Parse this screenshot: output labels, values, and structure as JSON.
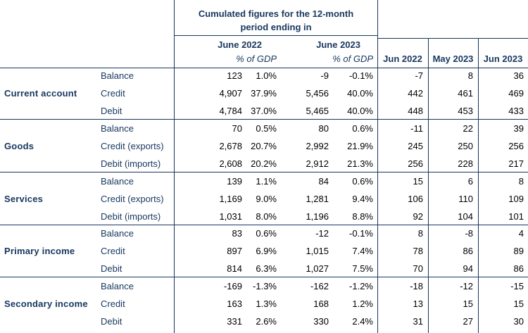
{
  "header": {
    "cumulated_line1": "Cumulated figures for the 12-month",
    "cumulated_line2": "period ending in",
    "june2022": "June 2022",
    "june2023": "June 2023",
    "pct_gdp_1": "% of GDP",
    "pct_gdp_2": "% of GDP",
    "m1": "Jun 2022",
    "m2": "May 2023",
    "m3": "Jun 2023"
  },
  "sections": [
    {
      "name": "Current account",
      "rows": [
        {
          "label": "Balance",
          "v1": "123",
          "p1": "1.0%",
          "v2": "-9",
          "p2": "-0.1%",
          "m1": "-7",
          "m2": "8",
          "m3": "36"
        },
        {
          "label": "Credit",
          "v1": "4,907",
          "p1": "37.9%",
          "v2": "5,456",
          "p2": "40.0%",
          "m1": "442",
          "m2": "461",
          "m3": "469"
        },
        {
          "label": "Debit",
          "v1": "4,784",
          "p1": "37.0%",
          "v2": "5,465",
          "p2": "40.0%",
          "m1": "448",
          "m2": "453",
          "m3": "433"
        }
      ]
    },
    {
      "name": "Goods",
      "rows": [
        {
          "label": "Balance",
          "v1": "70",
          "p1": "0.5%",
          "v2": "80",
          "p2": "0.6%",
          "m1": "-11",
          "m2": "22",
          "m3": "39"
        },
        {
          "label": "Credit (exports)",
          "v1": "2,678",
          "p1": "20.7%",
          "v2": "2,992",
          "p2": "21.9%",
          "m1": "245",
          "m2": "250",
          "m3": "256"
        },
        {
          "label": "Debit (imports)",
          "v1": "2,608",
          "p1": "20.2%",
          "v2": "2,912",
          "p2": "21.3%",
          "m1": "256",
          "m2": "228",
          "m3": "217"
        }
      ]
    },
    {
      "name": "Services",
      "rows": [
        {
          "label": "Balance",
          "v1": "139",
          "p1": "1.1%",
          "v2": "84",
          "p2": "0.6%",
          "m1": "15",
          "m2": "6",
          "m3": "8"
        },
        {
          "label": "Credit (exports)",
          "v1": "1,169",
          "p1": "9.0%",
          "v2": "1,281",
          "p2": "9.4%",
          "m1": "106",
          "m2": "110",
          "m3": "109"
        },
        {
          "label": "Debit (imports)",
          "v1": "1,031",
          "p1": "8.0%",
          "v2": "1,196",
          "p2": "8.8%",
          "m1": "92",
          "m2": "104",
          "m3": "101"
        }
      ]
    },
    {
      "name": "Primary income",
      "rows": [
        {
          "label": "Balance",
          "v1": "83",
          "p1": "0.6%",
          "v2": "-12",
          "p2": "-0.1%",
          "m1": "8",
          "m2": "-8",
          "m3": "4"
        },
        {
          "label": "Credit",
          "v1": "897",
          "p1": "6.9%",
          "v2": "1,015",
          "p2": "7.4%",
          "m1": "78",
          "m2": "86",
          "m3": "89"
        },
        {
          "label": "Debit",
          "v1": "814",
          "p1": "6.3%",
          "v2": "1,027",
          "p2": "7.5%",
          "m1": "70",
          "m2": "94",
          "m3": "86"
        }
      ]
    },
    {
      "name": "Secondary income",
      "rows": [
        {
          "label": "Balance",
          "v1": "-169",
          "p1": "-1.3%",
          "v2": "-162",
          "p2": "-1.2%",
          "m1": "-18",
          "m2": "-12",
          "m3": "-15"
        },
        {
          "label": "Credit",
          "v1": "163",
          "p1": "1.3%",
          "v2": "168",
          "p2": "1.2%",
          "m1": "13",
          "m2": "15",
          "m3": "15"
        },
        {
          "label": "Debit",
          "v1": "331",
          "p1": "2.6%",
          "v2": "330",
          "p2": "2.4%",
          "m1": "31",
          "m2": "27",
          "m3": "30"
        }
      ]
    }
  ]
}
